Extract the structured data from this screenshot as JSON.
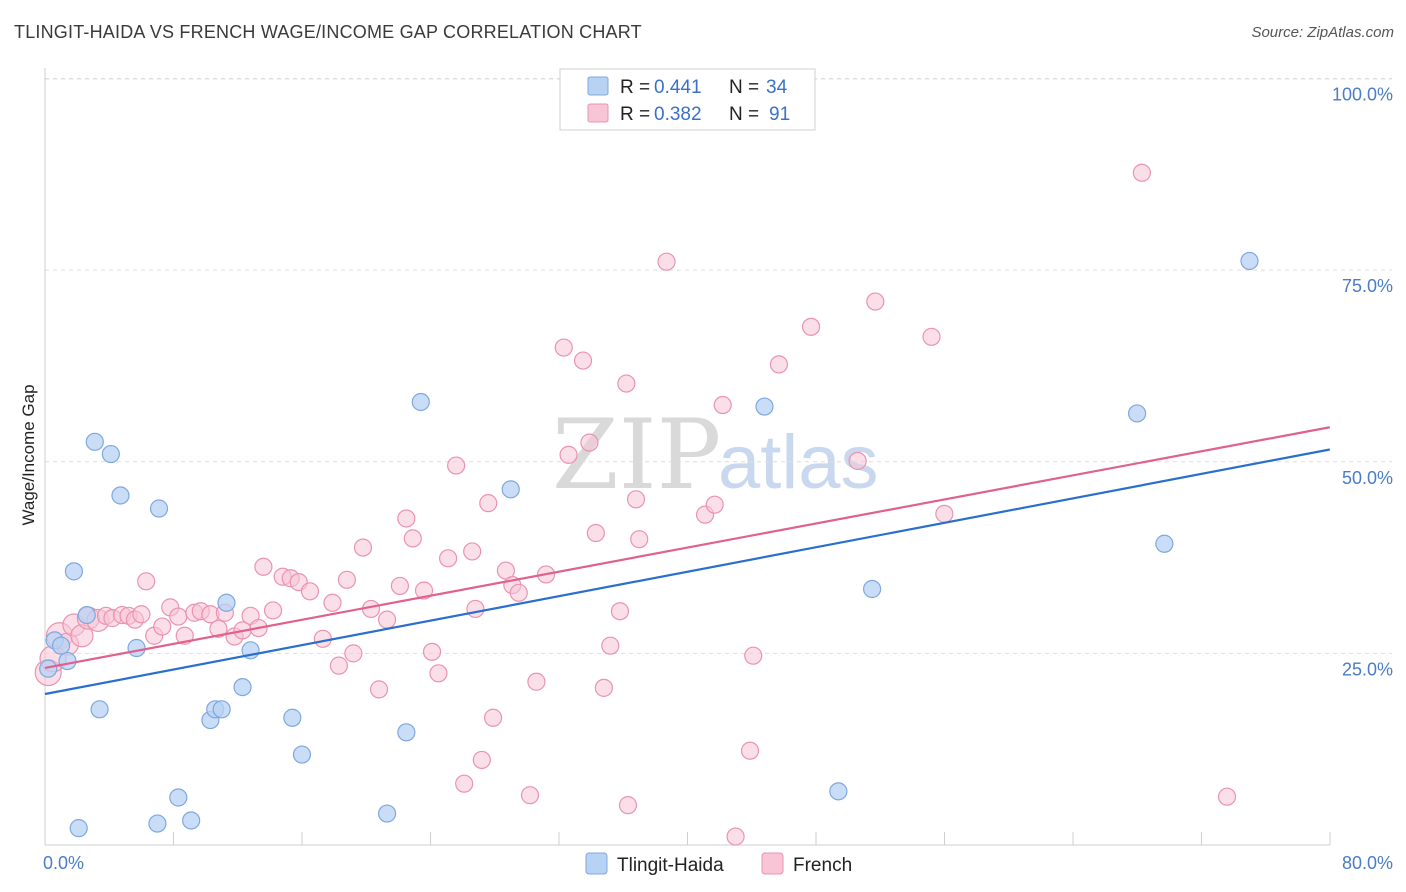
{
  "header": {
    "title": "TLINGIT-HAIDA VS FRENCH WAGE/INCOME GAP CORRELATION CHART",
    "source": "Source: ZipAtlas.com"
  },
  "watermark": {
    "zip": "ZIP",
    "atlas": "atlas"
  },
  "colors": {
    "blue_fill": "#b8d2f4",
    "blue_stroke": "#7ea8e0",
    "blue_line": "#2a6fce",
    "pink_fill": "#f7c5d5",
    "pink_stroke": "#ea93b1",
    "pink_line": "#e0608e",
    "grid": "#dddddd",
    "axis_text": "#4a7cc8"
  },
  "legend": {
    "rows": [
      {
        "r_label": "R =",
        "r_value": "0.441",
        "n_label": "N =",
        "n_value": "34"
      },
      {
        "r_label": "R =",
        "r_value": "0.382",
        "n_label": "N =",
        "n_value": "91"
      }
    ]
  },
  "bottom_legend": {
    "items": [
      "Tlingit-Haida",
      "French"
    ]
  },
  "chart_data": {
    "type": "scatter",
    "title": "TLINGIT-HAIDA VS FRENCH WAGE/INCOME GAP CORRELATION CHART",
    "xlabel": "",
    "ylabel": "Wage/Income Gap",
    "xlim": [
      0,
      80
    ],
    "ylim": [
      0,
      100
    ],
    "x_tick_labels": [
      "0.0%",
      "80.0%"
    ],
    "y_ticks": [
      25,
      50,
      75,
      100
    ],
    "y_tick_labels": [
      "25.0%",
      "50.0%",
      "75.0%",
      "100.0%"
    ],
    "series": [
      {
        "name": "Tlingit-Haida",
        "R": 0.441,
        "N": 34,
        "trend": {
          "x": [
            0,
            80
          ],
          "y": [
            19.7,
            51.6
          ]
        },
        "points": [
          [
            0.6,
            26.7
          ],
          [
            1,
            26
          ],
          [
            1.4,
            24
          ],
          [
            1.8,
            35.7
          ],
          [
            2.1,
            2.2
          ],
          [
            2.6,
            30
          ],
          [
            3.1,
            52.6
          ],
          [
            3.4,
            17.7
          ],
          [
            4.1,
            51
          ],
          [
            4.7,
            45.6
          ],
          [
            5.7,
            25.7
          ],
          [
            7,
            2.8
          ],
          [
            7.1,
            43.9
          ],
          [
            8.3,
            6.2
          ],
          [
            9.1,
            3.2
          ],
          [
            10.3,
            16.3
          ],
          [
            10.6,
            17.7
          ],
          [
            11,
            17.7
          ],
          [
            11.3,
            31.6
          ],
          [
            12.3,
            20.6
          ],
          [
            12.8,
            25.4
          ],
          [
            15.4,
            16.6
          ],
          [
            16,
            11.8
          ],
          [
            21.3,
            4.1
          ],
          [
            22.5,
            14.7
          ],
          [
            23.4,
            57.8
          ],
          [
            29,
            46.4
          ],
          [
            44.8,
            57.2
          ],
          [
            49.4,
            7
          ],
          [
            51.5,
            33.4
          ],
          [
            68,
            56.3
          ],
          [
            69.7,
            39.3
          ],
          [
            75,
            76.2
          ],
          [
            0.2,
            23
          ]
        ]
      },
      {
        "name": "French",
        "R": 0.382,
        "N": 91,
        "trend": {
          "x": [
            0,
            80
          ],
          "y": [
            23.1,
            54.5
          ]
        },
        "points": [
          [
            0.2,
            22.5
          ],
          [
            0.5,
            24.3
          ],
          [
            0.9,
            27.3
          ],
          [
            1.4,
            26.2
          ],
          [
            1.8,
            28.7
          ],
          [
            2.3,
            27.3
          ],
          [
            2.7,
            29.6
          ],
          [
            3.3,
            29.3
          ],
          [
            3.8,
            29.9
          ],
          [
            4.2,
            29.6
          ],
          [
            4.8,
            30
          ],
          [
            5.2,
            29.9
          ],
          [
            5.6,
            29.4
          ],
          [
            6,
            30.1
          ],
          [
            6.3,
            34.4
          ],
          [
            6.8,
            27.3
          ],
          [
            7.3,
            28.5
          ],
          [
            7.8,
            31
          ],
          [
            8.3,
            29.8
          ],
          [
            8.7,
            27.3
          ],
          [
            9.3,
            30.3
          ],
          [
            9.7,
            30.5
          ],
          [
            10.3,
            30.1
          ],
          [
            10.8,
            28.2
          ],
          [
            11.2,
            30.3
          ],
          [
            11.8,
            27.2
          ],
          [
            12.3,
            28
          ],
          [
            12.8,
            29.9
          ],
          [
            13.3,
            28.3
          ],
          [
            13.6,
            36.3
          ],
          [
            14.2,
            30.6
          ],
          [
            14.8,
            35
          ],
          [
            15.3,
            34.8
          ],
          [
            15.8,
            34.3
          ],
          [
            16.5,
            33.1
          ],
          [
            17.3,
            26.9
          ],
          [
            17.9,
            31.6
          ],
          [
            18.3,
            23.4
          ],
          [
            18.8,
            34.6
          ],
          [
            19.2,
            25
          ],
          [
            19.8,
            38.8
          ],
          [
            20.3,
            30.8
          ],
          [
            20.8,
            20.3
          ],
          [
            21.3,
            29.4
          ],
          [
            22.1,
            33.8
          ],
          [
            22.5,
            42.6
          ],
          [
            22.9,
            40
          ],
          [
            23.6,
            33.2
          ],
          [
            24.1,
            25.2
          ],
          [
            24.5,
            22.4
          ],
          [
            25.1,
            37.4
          ],
          [
            25.6,
            49.5
          ],
          [
            26.6,
            38.3
          ],
          [
            26.8,
            30.8
          ],
          [
            27.6,
            44.6
          ],
          [
            27.9,
            16.6
          ],
          [
            28.7,
            35.8
          ],
          [
            29.1,
            33.9
          ],
          [
            29.5,
            32.9
          ],
          [
            30.2,
            6.5
          ],
          [
            30.6,
            21.3
          ],
          [
            31.2,
            35.3
          ],
          [
            32.3,
            64.9
          ],
          [
            32.6,
            50.9
          ],
          [
            33.5,
            63.2
          ],
          [
            33.9,
            52.5
          ],
          [
            34.3,
            40.7
          ],
          [
            34.8,
            20.5
          ],
          [
            35.2,
            26
          ],
          [
            35.8,
            30.5
          ],
          [
            36.2,
            60.2
          ],
          [
            36.8,
            45.1
          ],
          [
            37,
            39.9
          ],
          [
            38.7,
            76.1
          ],
          [
            41.1,
            43.1
          ],
          [
            41.7,
            44.4
          ],
          [
            42.2,
            57.4
          ],
          [
            43.9,
            12.3
          ],
          [
            45.7,
            62.7
          ],
          [
            47.7,
            67.6
          ],
          [
            50.6,
            50.1
          ],
          [
            51.7,
            70.9
          ],
          [
            55.2,
            66.3
          ],
          [
            56,
            43.2
          ],
          [
            68.3,
            87.7
          ],
          [
            73.6,
            6.3
          ],
          [
            26.1,
            8
          ],
          [
            27.2,
            11.1
          ],
          [
            36.3,
            5.2
          ],
          [
            43,
            1.1
          ],
          [
            44.1,
            24.7
          ]
        ]
      }
    ]
  }
}
